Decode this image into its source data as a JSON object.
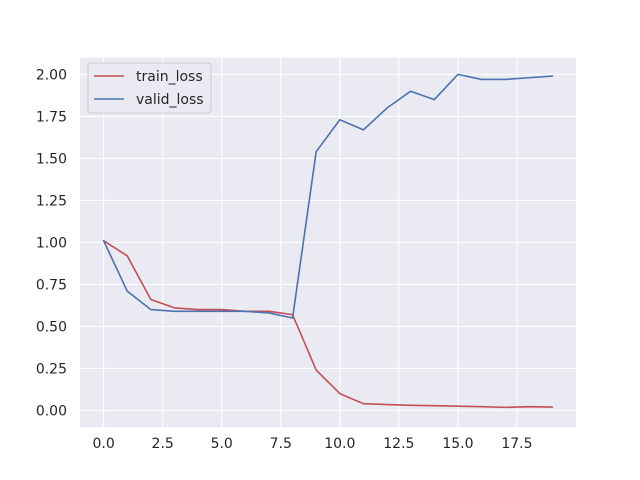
{
  "chart_data": {
    "type": "line",
    "title": "",
    "xlabel": "",
    "ylabel": "",
    "xlim": [
      -1.0,
      20.0
    ],
    "ylim": [
      -0.1,
      2.1
    ],
    "x_ticks": [
      0.0,
      2.5,
      5.0,
      7.5,
      10.0,
      12.5,
      15.0,
      17.5
    ],
    "x_tick_labels": [
      "0.0",
      "2.5",
      "5.0",
      "7.5",
      "10.0",
      "12.5",
      "15.0",
      "17.5"
    ],
    "y_ticks": [
      0.0,
      0.25,
      0.5,
      0.75,
      1.0,
      1.25,
      1.5,
      1.75,
      2.0
    ],
    "y_tick_labels": [
      "0.00",
      "0.25",
      "0.50",
      "0.75",
      "1.00",
      "1.25",
      "1.50",
      "1.75",
      "2.00"
    ],
    "grid": true,
    "legend_position": "upper-left",
    "x": [
      0,
      1,
      2,
      3,
      4,
      5,
      6,
      7,
      8,
      9,
      10,
      11,
      12,
      13,
      14,
      15,
      16,
      17,
      18,
      19
    ],
    "series": [
      {
        "name": "train_loss",
        "color": "#c44e52",
        "values": [
          1.01,
          0.92,
          0.66,
          0.61,
          0.6,
          0.6,
          0.59,
          0.59,
          0.57,
          0.24,
          0.1,
          0.04,
          0.035,
          0.03,
          0.028,
          0.025,
          0.022,
          0.018,
          0.022,
          0.02
        ]
      },
      {
        "name": "valid_loss",
        "color": "#4c72b0",
        "values": [
          1.01,
          0.71,
          0.6,
          0.59,
          0.59,
          0.59,
          0.59,
          0.58,
          0.55,
          1.54,
          1.73,
          1.67,
          1.8,
          1.9,
          1.85,
          2.0,
          1.97,
          1.97,
          1.98,
          1.99
        ]
      }
    ]
  }
}
